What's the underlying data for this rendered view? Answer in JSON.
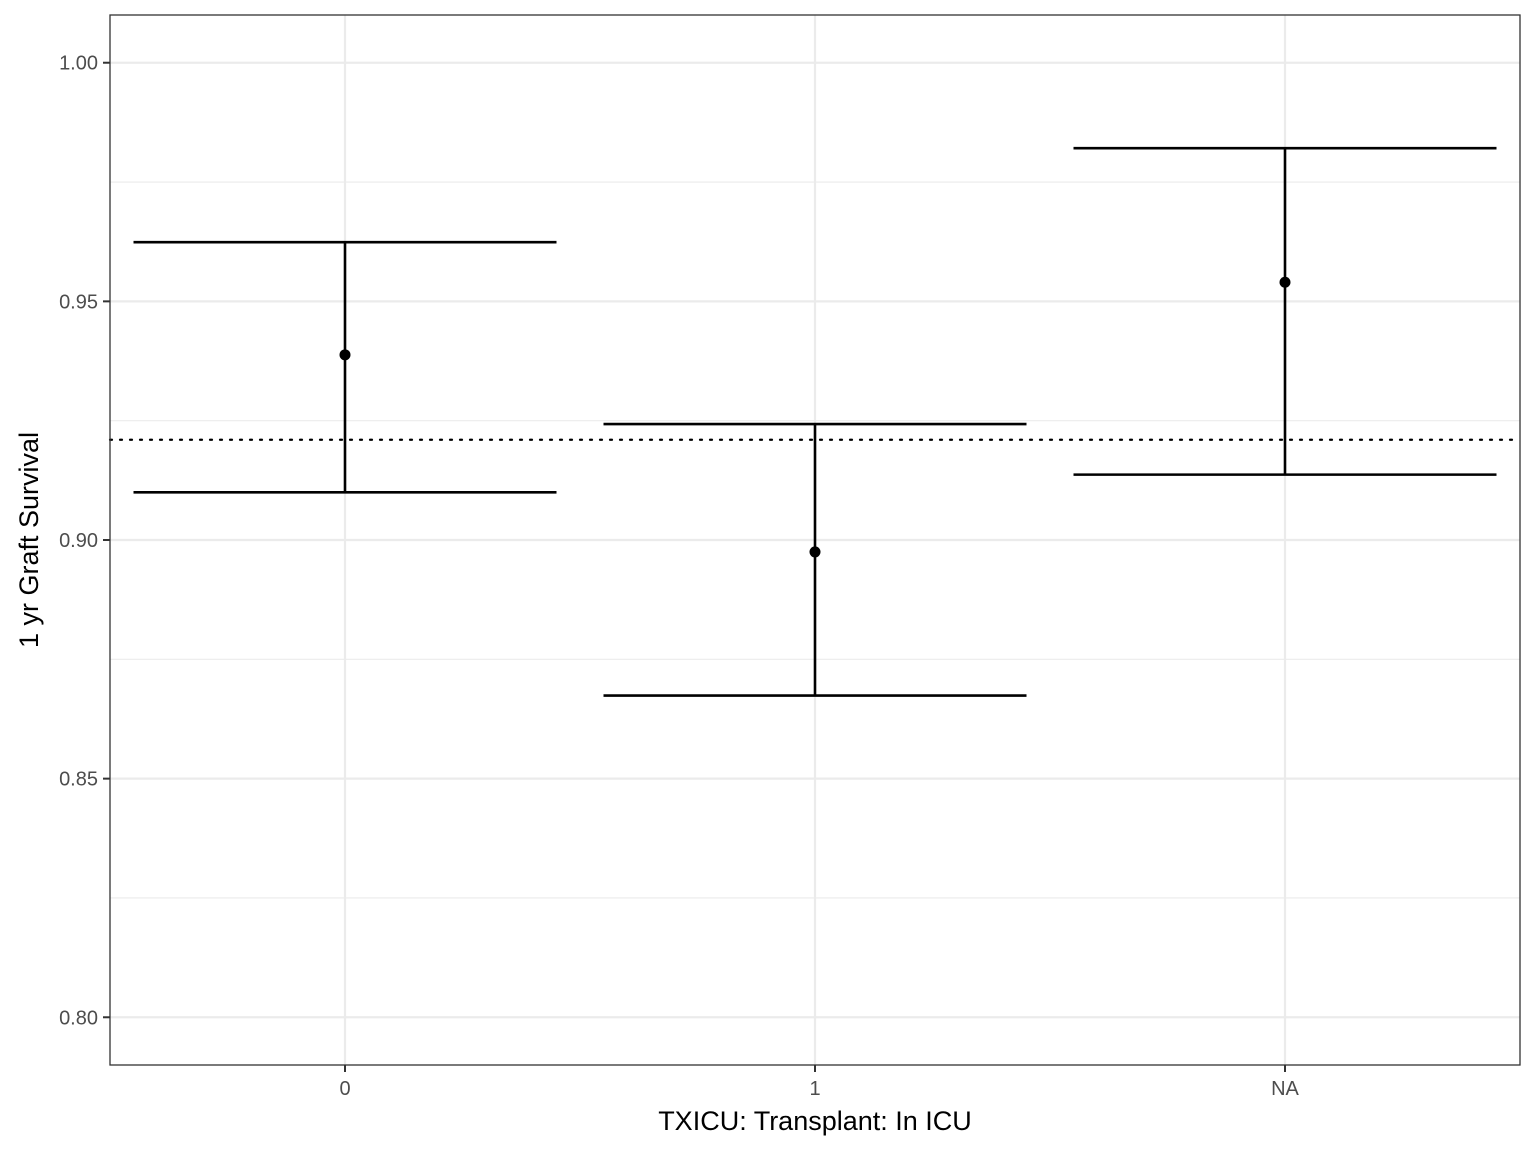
{
  "chart_data": {
    "type": "errorbar",
    "xlabel": "TXICU: Transplant: In ICU",
    "ylabel": "1 yr Graft Survival",
    "categories": [
      "0",
      "1",
      "NA"
    ],
    "points": [
      {
        "category": "0",
        "estimate": 0.9388,
        "lower": 0.91,
        "upper": 0.9624
      },
      {
        "category": "1",
        "estimate": 0.8975,
        "lower": 0.8674,
        "upper": 0.9243
      },
      {
        "category": "NA",
        "estimate": 0.954,
        "lower": 0.9137,
        "upper": 0.9821
      }
    ],
    "reference_line": {
      "y": 0.921,
      "style": "dotted"
    },
    "ylim": [
      0.79,
      1.01
    ],
    "yticks": [
      "0.80",
      "0.85",
      "0.90",
      "0.95",
      "1.00"
    ],
    "grid": true,
    "colors": {
      "marks": "#000000",
      "grid": "#ebebeb",
      "panel_border": "#333333",
      "tick_text": "#4d4d4d"
    }
  }
}
